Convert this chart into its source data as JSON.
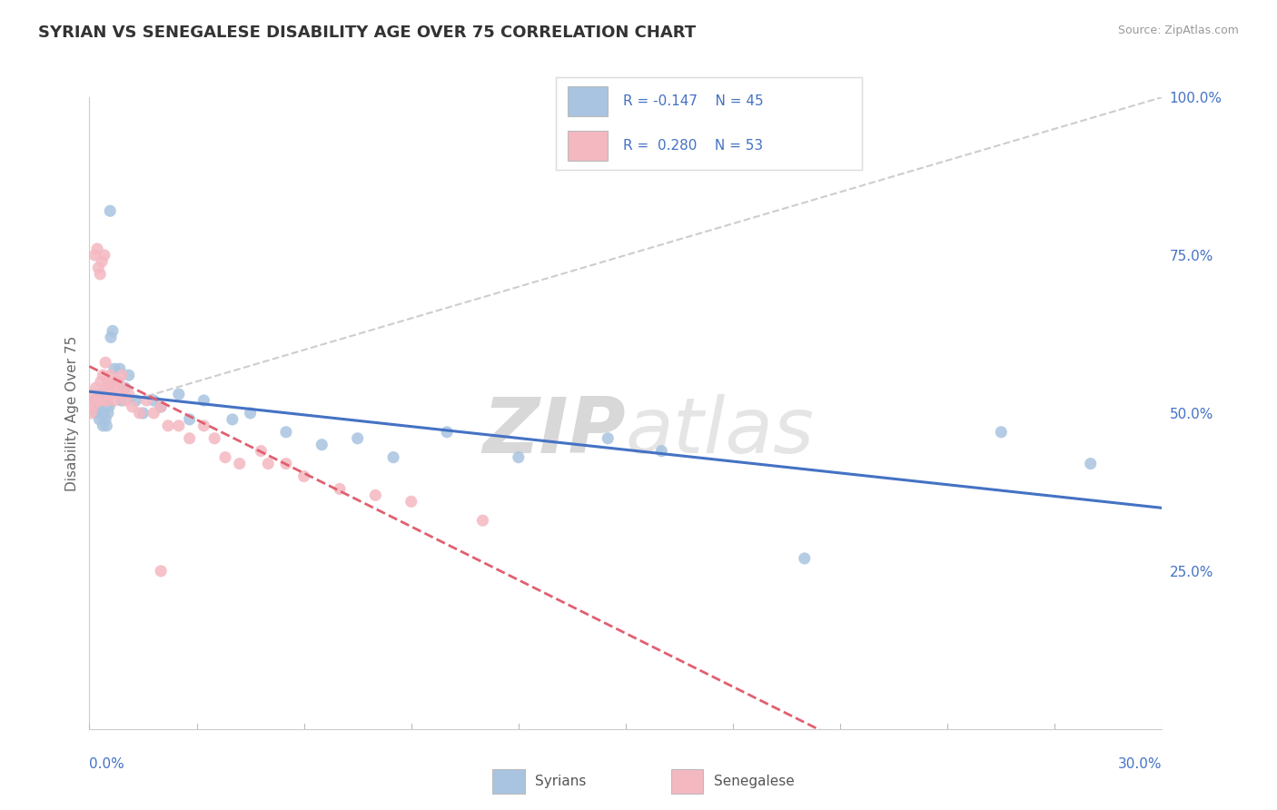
{
  "title": "SYRIAN VS SENEGALESE DISABILITY AGE OVER 75 CORRELATION CHART",
  "source": "Source: ZipAtlas.com",
  "ylabel": "Disability Age Over 75",
  "xlim": [
    0.0,
    30.0
  ],
  "ylim": [
    0.0,
    100.0
  ],
  "yticks_right": [
    25.0,
    50.0,
    75.0,
    100.0
  ],
  "ytick_labels_right": [
    "25.0%",
    "50.0%",
    "75.0%",
    "100.0%"
  ],
  "syrian_color": "#a8c4e0",
  "senegalese_color": "#f4b8c1",
  "syrian_line_color": "#4472c4",
  "senegalese_line_color": "#e06070",
  "ref_line_color": "#c8c8c8",
  "background_color": "#ffffff",
  "grid_color": "#e5e5e5",
  "watermark_zip": "ZIP",
  "watermark_atlas": "atlas",
  "title_fontsize": 13,
  "axis_label_color": "#4472c4",
  "syrian_R": -0.147,
  "senegalese_R": 0.28,
  "syrian_N": 45,
  "senegalese_N": 53,
  "syrian_scatter_x": [
    0.15,
    0.2,
    0.25,
    0.28,
    0.3,
    0.32,
    0.35,
    0.38,
    0.4,
    0.42,
    0.45,
    0.48,
    0.5,
    0.52,
    0.55,
    0.58,
    0.6,
    0.65,
    0.7,
    0.75,
    0.8,
    0.85,
    0.9,
    1.0,
    1.1,
    1.3,
    1.5,
    1.8,
    2.0,
    2.5,
    2.8,
    3.2,
    4.0,
    4.5,
    5.5,
    6.5,
    7.5,
    8.5,
    10.0,
    12.0,
    14.5,
    16.0,
    20.0,
    25.5,
    28.0
  ],
  "syrian_scatter_y": [
    52,
    50,
    51,
    49,
    52,
    53,
    50,
    48,
    50,
    52,
    49,
    48,
    53,
    50,
    51,
    82,
    62,
    63,
    57,
    55,
    55,
    57,
    52,
    54,
    56,
    52,
    50,
    52,
    51,
    53,
    49,
    52,
    49,
    50,
    47,
    45,
    46,
    43,
    47,
    43,
    46,
    44,
    27,
    47,
    42
  ],
  "senegalese_scatter_x": [
    0.05,
    0.08,
    0.1,
    0.12,
    0.15,
    0.18,
    0.2,
    0.22,
    0.25,
    0.28,
    0.3,
    0.32,
    0.35,
    0.38,
    0.4,
    0.42,
    0.45,
    0.48,
    0.5,
    0.52,
    0.55,
    0.58,
    0.6,
    0.65,
    0.7,
    0.75,
    0.8,
    0.85,
    0.9,
    0.95,
    1.0,
    1.1,
    1.2,
    1.4,
    1.6,
    1.8,
    2.0,
    2.2,
    2.5,
    2.8,
    3.2,
    3.5,
    3.8,
    4.2,
    4.8,
    5.0,
    5.5,
    6.0,
    7.0,
    8.0,
    9.0,
    11.0,
    2.0
  ],
  "senegalese_scatter_y": [
    50,
    52,
    51,
    53,
    75,
    54,
    52,
    76,
    73,
    52,
    72,
    55,
    74,
    56,
    52,
    75,
    58,
    54,
    52,
    55,
    54,
    56,
    53,
    55,
    52,
    54,
    55,
    53,
    56,
    54,
    52,
    53,
    51,
    50,
    52,
    50,
    51,
    48,
    48,
    46,
    48,
    46,
    43,
    42,
    44,
    42,
    42,
    40,
    38,
    37,
    36,
    33,
    25
  ]
}
